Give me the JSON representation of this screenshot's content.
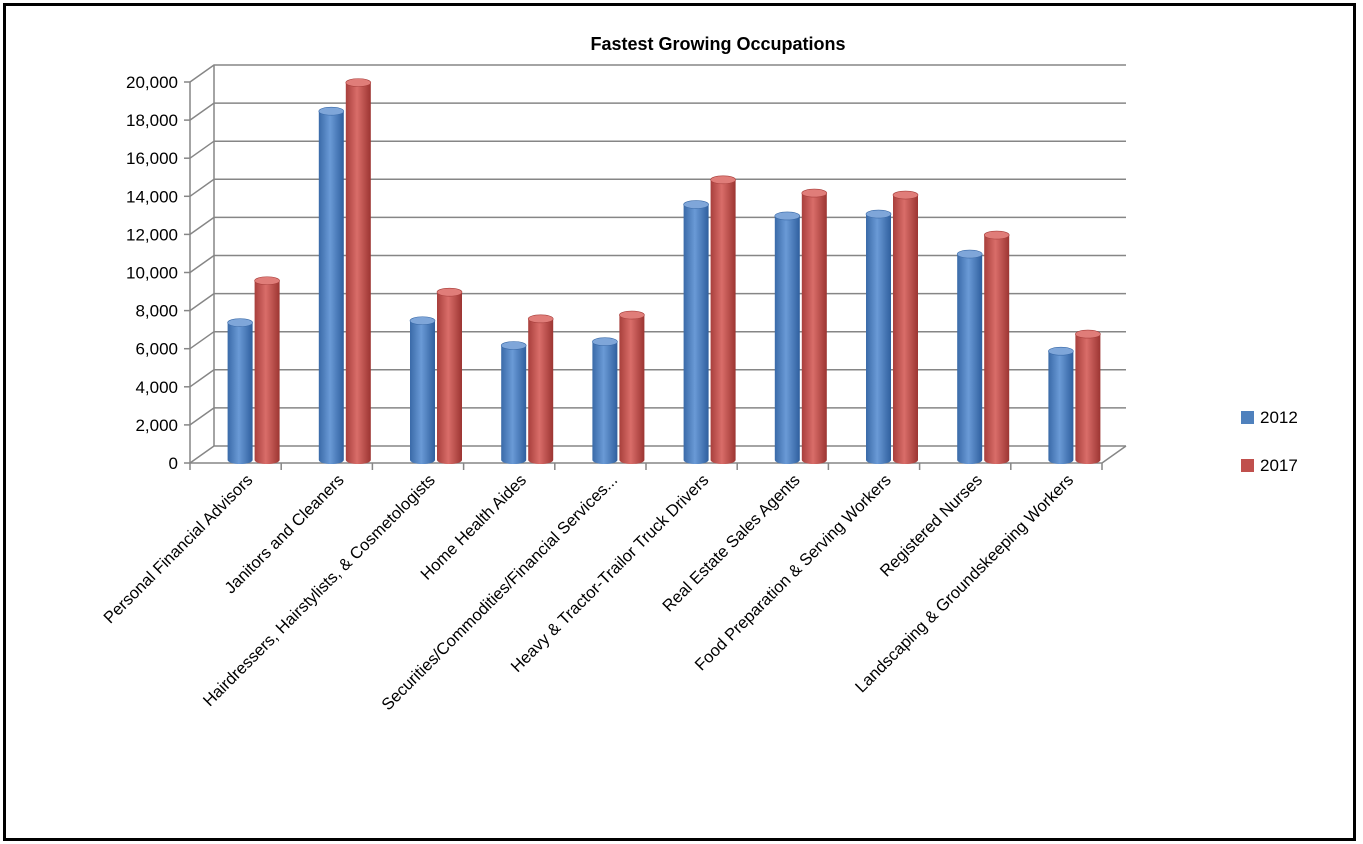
{
  "chart_data": {
    "type": "bar",
    "title": "Fastest Growing Occupations",
    "xlabel": "",
    "ylabel": "",
    "ylim": [
      0,
      20000
    ],
    "yticks": [
      "0",
      "2,000",
      "4,000",
      "6,000",
      "8,000",
      "10,000",
      "12,000",
      "14,000",
      "16,000",
      "18,000",
      "20,000"
    ],
    "grid": true,
    "legend_position": "right",
    "categories": [
      "Personal Financial Advisors",
      "Janitors and Cleaners",
      "Hairdressers, Hairstylists, & Cosmetologists",
      "Home Health Aides",
      "Securities/Commodities/Financial Services...",
      "Heavy & Tractor-Trailor Truck Drivers",
      "Real Estate Sales Agents",
      "Food Preparation & Serving Workers",
      "Registered Nurses",
      "Landscaping & Groundskeeping Workers"
    ],
    "series": [
      {
        "name": "2012",
        "color": "#4f81bd",
        "values": [
          7000,
          18100,
          7100,
          5800,
          6000,
          13200,
          12600,
          12700,
          10600,
          5500
        ]
      },
      {
        "name": "2017",
        "color": "#c0504d",
        "values": [
          9200,
          19600,
          8600,
          7200,
          7400,
          14500,
          13800,
          13700,
          11600,
          6400
        ]
      }
    ]
  }
}
